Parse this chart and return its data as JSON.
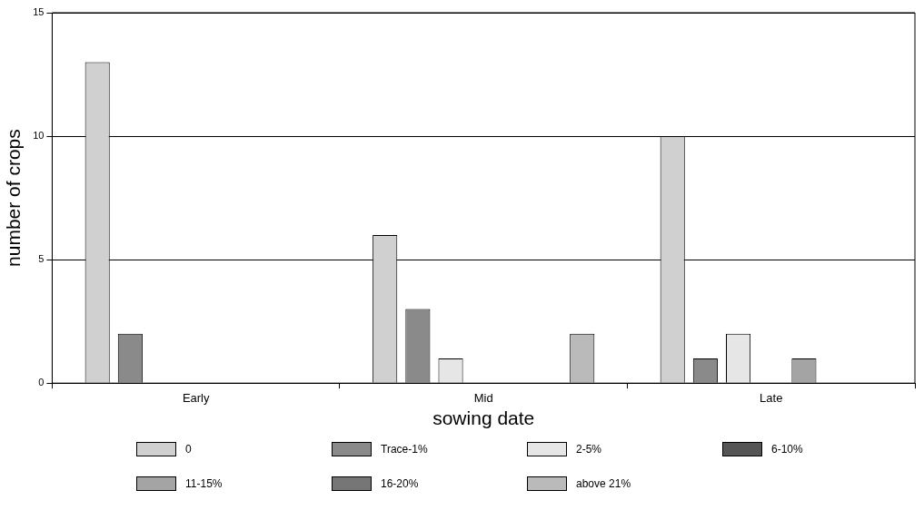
{
  "chart_data": {
    "type": "bar",
    "xlabel": "sowing date",
    "ylabel": "number of crops",
    "categories": [
      "Early",
      "Mid",
      "Late"
    ],
    "series": [
      {
        "name": "0",
        "color": "#d0d0d0",
        "values": [
          13,
          6,
          10
        ]
      },
      {
        "name": "Trace-1%",
        "color": "#8a8a8a",
        "values": [
          2,
          3,
          1
        ]
      },
      {
        "name": "2-5%",
        "color": "#e6e6e6",
        "values": [
          0,
          1,
          2
        ]
      },
      {
        "name": "6-10%",
        "color": "#555555",
        "values": [
          0,
          0,
          0
        ]
      },
      {
        "name": "11-15%",
        "color": "#a4a4a4",
        "values": [
          0,
          0,
          1
        ]
      },
      {
        "name": "16-20%",
        "color": "#767676",
        "values": [
          0,
          0,
          0
        ]
      },
      {
        "name": "above 21%",
        "color": "#bababa",
        "values": [
          0,
          2,
          0
        ]
      }
    ],
    "ylim": [
      0,
      15
    ],
    "yticks": [
      0,
      5,
      10,
      15
    ],
    "grid": "y",
    "legend": "bottom"
  }
}
